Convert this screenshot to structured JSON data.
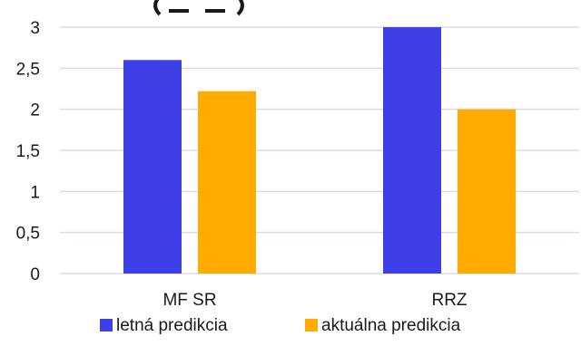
{
  "chart_data": {
    "type": "bar",
    "title": "",
    "xlabel": "",
    "ylabel": "",
    "categories": [
      "MF SR",
      "RRZ"
    ],
    "series": [
      {
        "name": "letná predikcia",
        "values": [
          2.6,
          3.0
        ],
        "color": "#3f3fe8"
      },
      {
        "name": "aktuálna predikcia",
        "values": [
          2.22,
          2.0
        ],
        "color": "#ffab00"
      }
    ],
    "ylim": [
      0,
      3
    ],
    "yticks": [
      {
        "value": 0,
        "label": "0"
      },
      {
        "value": 0.5,
        "label": "0,5"
      },
      {
        "value": 1,
        "label": "1"
      },
      {
        "value": 1.5,
        "label": "1,5"
      },
      {
        "value": 2,
        "label": "2"
      },
      {
        "value": 2.5,
        "label": "2,5"
      },
      {
        "value": 3,
        "label": "3"
      }
    ],
    "grid": true,
    "legend_position": "bottom",
    "colors": {
      "gridline": "#d6dcef",
      "text": "#1a1a1a"
    }
  }
}
